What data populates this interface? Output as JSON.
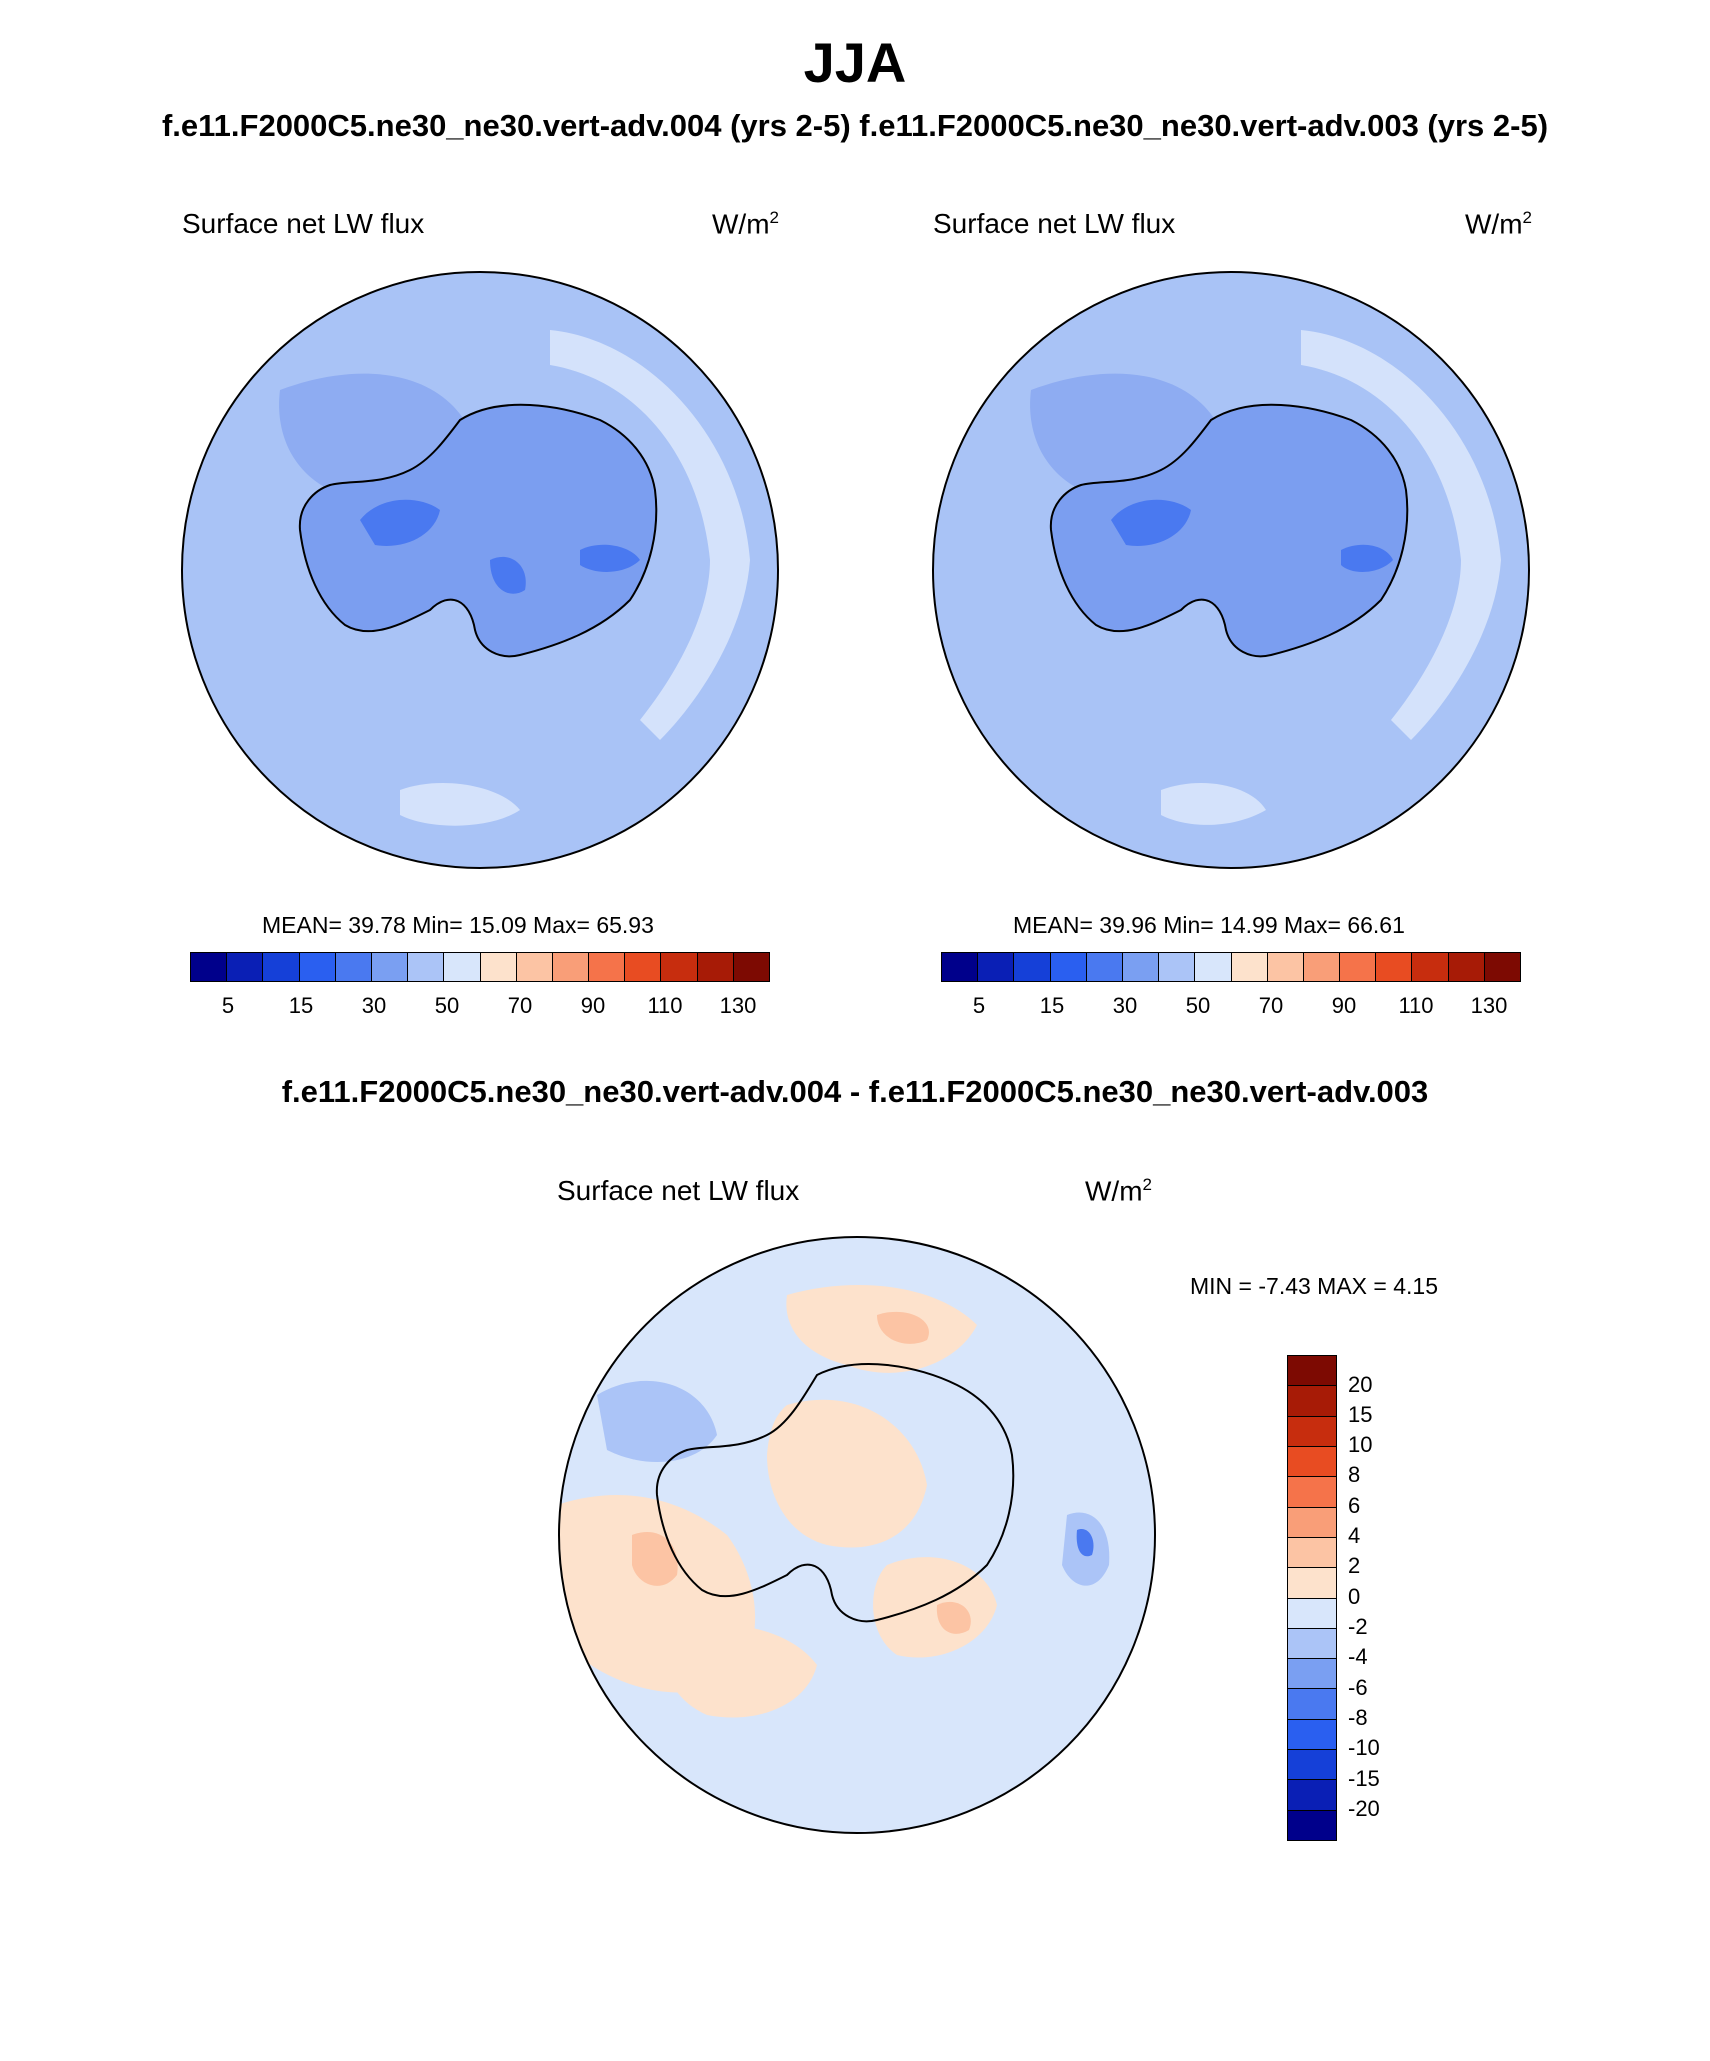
{
  "header": {
    "season": "JJA",
    "subtitle": "f.e11.F2000C5.ne30_ne30.vert-adv.004 (yrs 2-5)  f.e11.F2000C5.ne30_ne30.vert-adv.003 (yrs 2-5)"
  },
  "panels": [
    {
      "case": "f.e11.F2000C5.ne30_ne30.vert-adv.004 (yrs 2-5)",
      "field": "Surface net LW flux",
      "units": "W/m",
      "units_exp": "2",
      "stats": "MEAN=  39.78  Min=  15.09  Max=  65.93"
    },
    {
      "case": "f.e11.F2000C5.ne30_ne30.vert-adv.003 (yrs 2-5)",
      "field": "Surface net LW flux",
      "units": "W/m",
      "units_exp": "2",
      "stats": "MEAN=  39.96  Min=  14.99  Max=  66.61"
    }
  ],
  "colorbar_abs": {
    "colors": [
      "#00008b",
      "#0a1fb5",
      "#1540d8",
      "#2a5ff0",
      "#4a79f0",
      "#7a9ff2",
      "#abc4f7",
      "#d8e6fb",
      "#fde2cc",
      "#fcc4a4",
      "#f99e78",
      "#f5734a",
      "#e84c22",
      "#c72d0e",
      "#a71b06",
      "#7d0a02"
    ],
    "labels": [
      "5",
      "15",
      "30",
      "50",
      "70",
      "90",
      "110",
      "130"
    ]
  },
  "difference": {
    "title": "f.e11.F2000C5.ne30_ne30.vert-adv.004 - f.e11.F2000C5.ne30_ne30.vert-adv.003",
    "field": "Surface net LW flux",
    "units": "W/m",
    "units_exp": "2",
    "stats": "MIN =  -7.43 MAX =   4.15",
    "colorbar": {
      "colors": [
        "#7d0a02",
        "#a71b06",
        "#c72d0e",
        "#e84c22",
        "#f5734a",
        "#f99e78",
        "#fcc4a4",
        "#fde2cc",
        "#d8e6fb",
        "#abc4f7",
        "#7a9ff2",
        "#4a79f0",
        "#2a5ff0",
        "#1540d8",
        "#0a1fb5",
        "#00008b"
      ],
      "labels": [
        "20",
        "15",
        "10",
        "8",
        "6",
        "4",
        "2",
        "0",
        "-2",
        "-4",
        "-6",
        "-8",
        "-10",
        "-15",
        "-20"
      ]
    }
  },
  "colors": {
    "ocean_abs": "#a9c3f6",
    "land_abs": "#7b9ef0",
    "ocean_diff": "#d8e6fb",
    "positive_diff": "#fde2cc"
  }
}
